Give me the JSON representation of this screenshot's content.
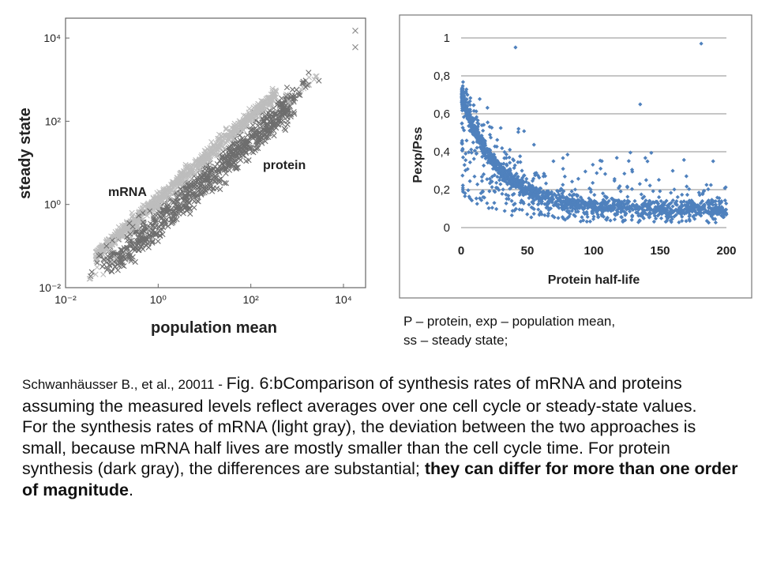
{
  "chart_data": [
    {
      "type": "scatter",
      "xlabel": "population mean",
      "ylabel": "steady state",
      "x_scale": "log",
      "y_scale": "log",
      "xlim": [
        0.01,
        30000
      ],
      "ylim": [
        0.01,
        30000
      ],
      "x_ticks": [
        "10⁻²",
        "10⁰",
        "10²",
        "10⁴"
      ],
      "y_ticks": [
        "10⁻²",
        "10⁰",
        "10²",
        "10⁴"
      ],
      "grid": false,
      "annotations": [
        "mRNA",
        "protein"
      ],
      "series": [
        {
          "label_text": "mRNA",
          "color": "#bdbdbd",
          "marker": "x",
          "x_range": [
            0.03,
            400
          ],
          "relation": "steady state ≈ 1.3 × population mean, narrow band"
        },
        {
          "label_text": "protein",
          "color": "#6e6e6e",
          "marker": "x",
          "x_range": [
            0.06,
            20000
          ],
          "relation": "steady state ≈ 0.3 × population mean, wide band",
          "outliers": [
            [
              18000,
              15000
            ],
            [
              18000,
              6000
            ]
          ]
        }
      ]
    },
    {
      "type": "scatter",
      "xlabel": "Protein half-life",
      "ylabel": "Pexp/Pss",
      "xlim": [
        0,
        200
      ],
      "ylim": [
        0,
        1
      ],
      "x_ticks": [
        "0",
        "50",
        "100",
        "150",
        "200"
      ],
      "y_ticks": [
        "0",
        "0,2",
        "0,4",
        "0,6",
        "0,8",
        "1"
      ],
      "grid": "horizontal",
      "marker": "diamond",
      "color": "#4f81bd",
      "trend": "Pexp/Pss decays from ~0.7 at half-life 0 to ~0.1 at half-life 200",
      "outliers": [
        [
          181,
          0.97
        ],
        [
          41,
          0.95
        ],
        [
          135,
          0.65
        ],
        [
          190,
          0.35
        ]
      ]
    }
  ],
  "caption": {
    "line1": "P – protein, exp – population mean,",
    "line2": "ss – steady state;"
  },
  "body": {
    "citation": "Schwanhäusser B., et  al., 20011 - ",
    "fig": "Fig. 6:bComparison of synthesis rates of mRNA and proteins assuming the measured levels reflect averages over one cell cycle or steady-state values.",
    "para2": "For the synthesis rates of mRNA (light gray), the deviation between the two approaches is small, because mRNA half lives are mostly smaller than the cell cycle time. For protein synthesis (dark gray), the differences are substantial; ",
    "bold": "they can differ for more than one order of magnitude",
    "end": "."
  },
  "colors": {
    "mrna": "#bdbdbd",
    "protein": "#6e6e6e",
    "right_points": "#4f81bd"
  }
}
